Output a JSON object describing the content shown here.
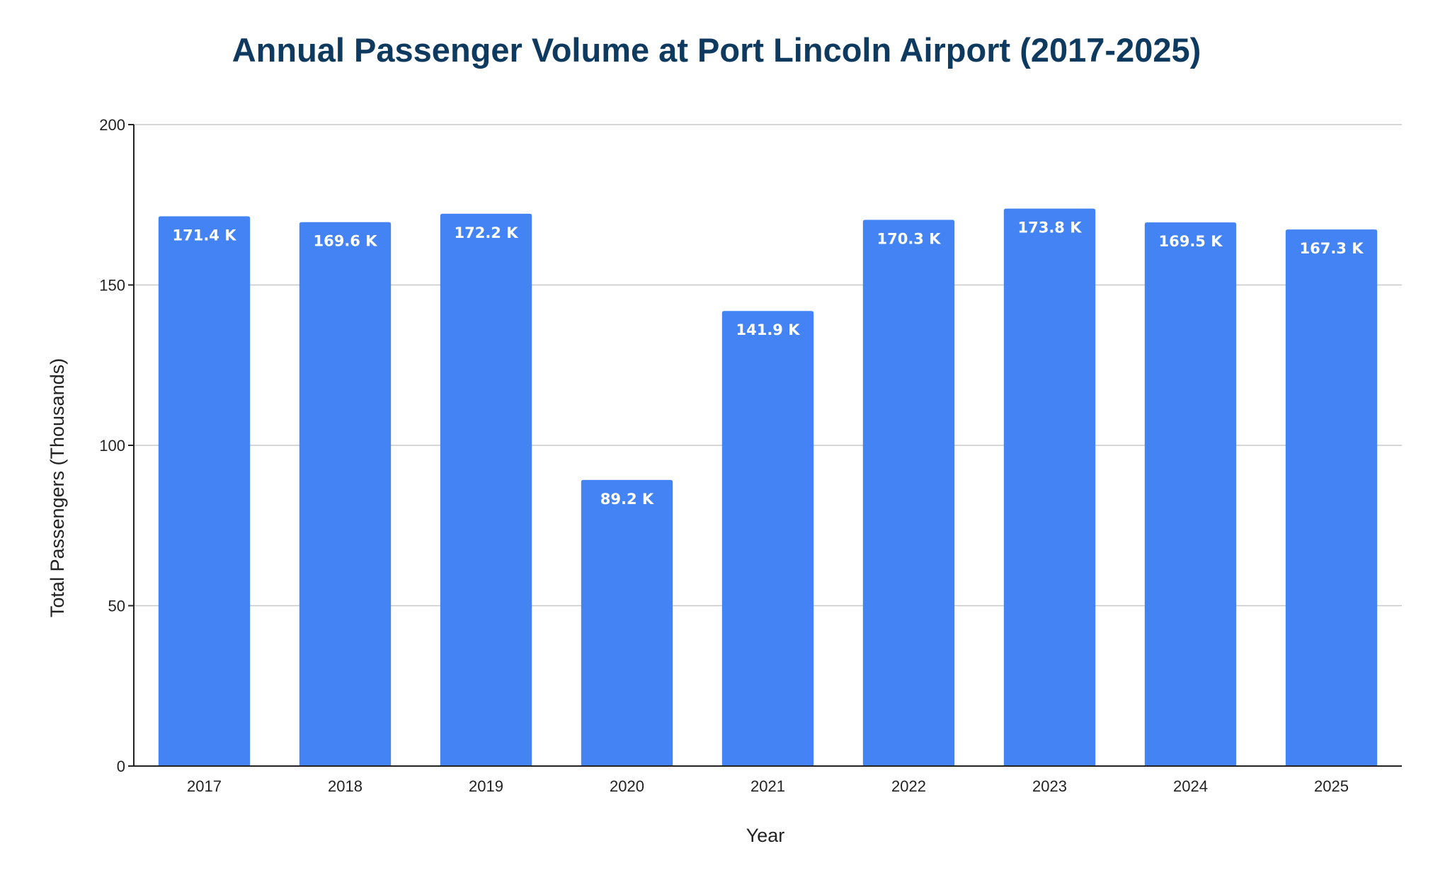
{
  "colors": {
    "bar": "#4483f3",
    "title": "#0f3a5f",
    "gridline": "#c8c8c8",
    "axis": "#222222",
    "data_label": "#ffffff"
  },
  "chart_data": {
    "type": "bar",
    "title": "Annual Passenger Volume at Port Lincoln Airport (2017-2025)",
    "xlabel": "Year",
    "ylabel": "Total Passengers (Thousands)",
    "categories": [
      "2017",
      "2018",
      "2019",
      "2020",
      "2021",
      "2022",
      "2023",
      "2024",
      "2025"
    ],
    "values": [
      171.4,
      169.6,
      172.2,
      89.2,
      141.9,
      170.3,
      173.8,
      169.5,
      167.3
    ],
    "data_labels": [
      "171.4 K",
      "169.6 K",
      "172.2 K",
      "89.2 K",
      "141.9 K",
      "170.3 K",
      "173.8 K",
      "169.5 K",
      "167.3 K"
    ],
    "ylim": [
      0,
      200
    ],
    "yticks": [
      0,
      50,
      100,
      150,
      200
    ],
    "grid": true,
    "legend": "none"
  }
}
